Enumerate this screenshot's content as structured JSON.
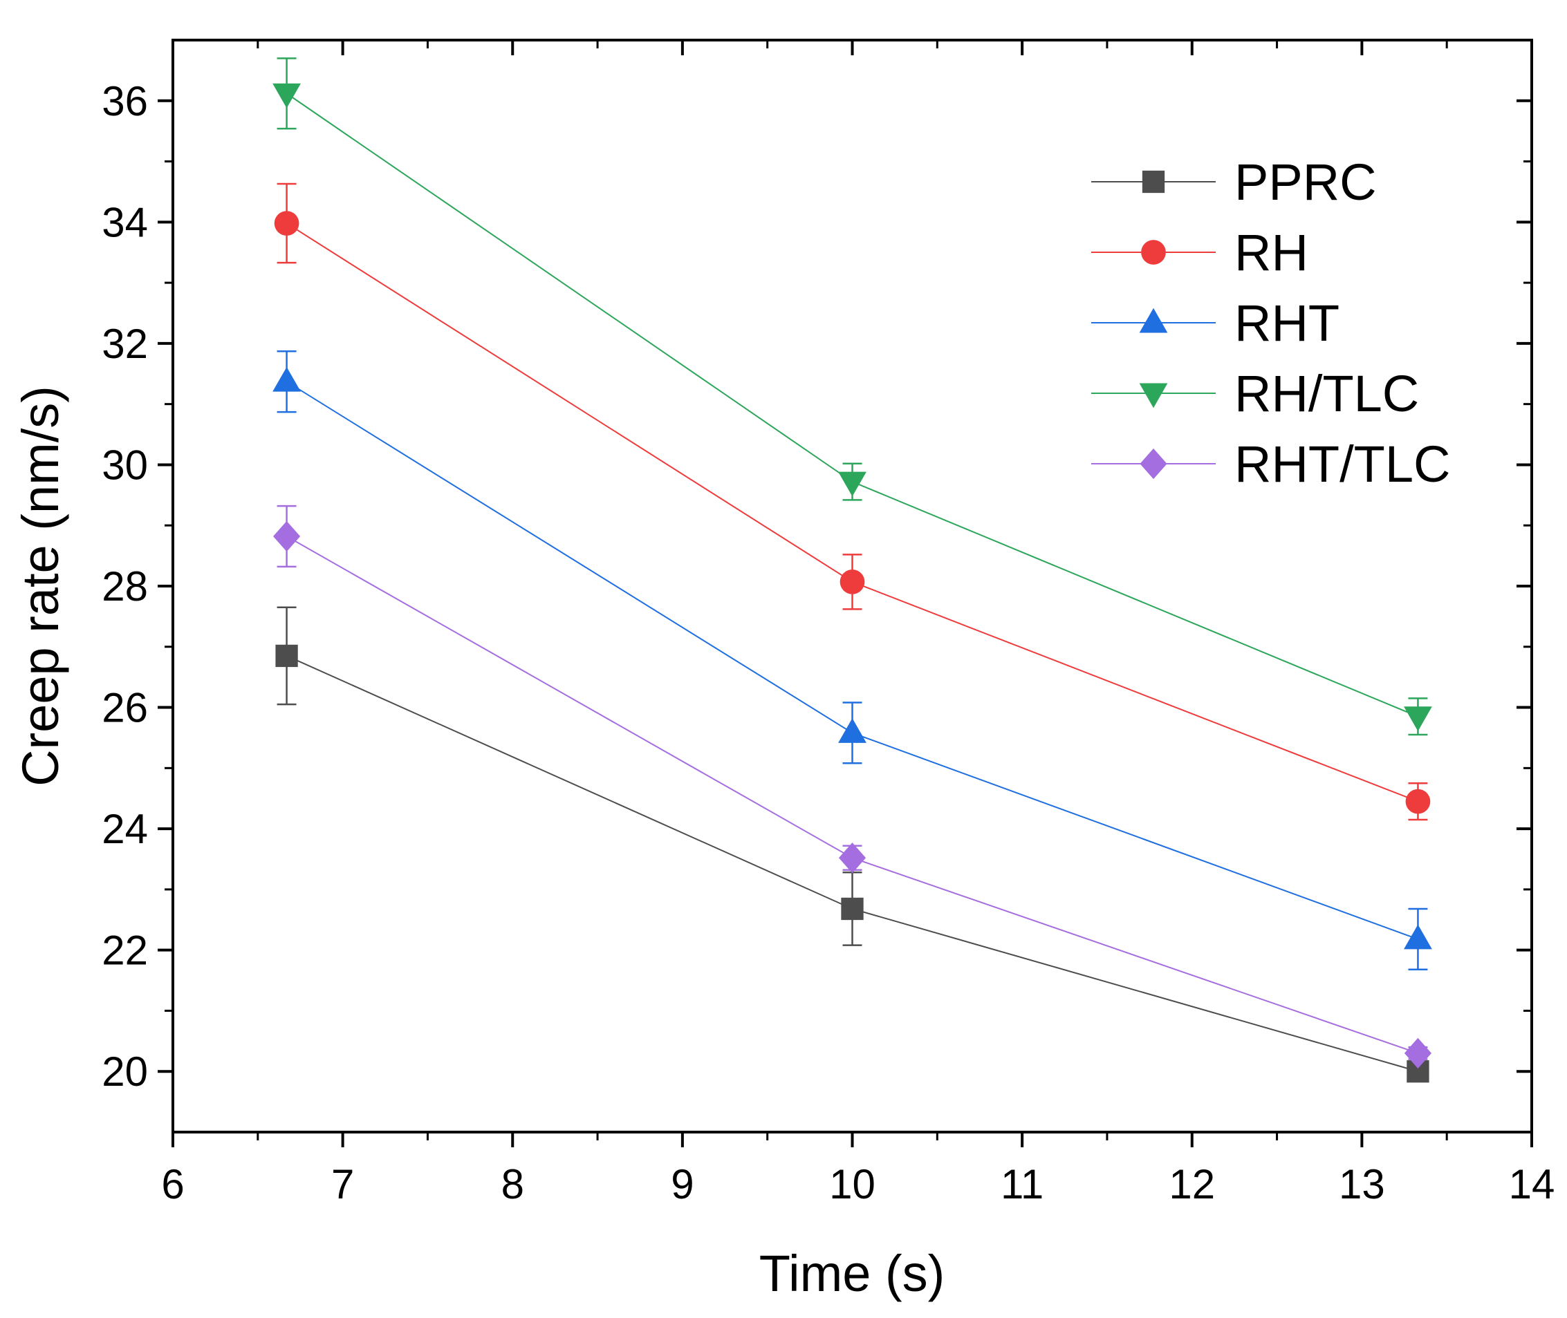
{
  "chart_data": {
    "type": "line",
    "title": "",
    "xlabel": "Time (s)",
    "ylabel": "Creep rate (nm/s)",
    "xlim": [
      6,
      14
    ],
    "ylim": [
      19,
      37
    ],
    "x_major_ticks": [
      6,
      7,
      8,
      9,
      10,
      11,
      12,
      13,
      14
    ],
    "x_tick_labels": [
      "6",
      "7",
      "8",
      "9",
      "10",
      "11",
      "12",
      "13",
      "14"
    ],
    "y_major_ticks": [
      20,
      22,
      24,
      26,
      28,
      30,
      32,
      34,
      36
    ],
    "y_tick_labels": [
      "20",
      "22",
      "24",
      "26",
      "28",
      "30",
      "32",
      "34",
      "36"
    ],
    "x_minor_step": 0.5,
    "y_minor_step": 1,
    "grid": false,
    "legend_position": "top-right",
    "x": [
      6.67,
      10,
      13.33
    ],
    "series": [
      {
        "name": "PPRC",
        "color": "#4d4d4d",
        "marker": "square",
        "values": [
          26.85,
          22.68,
          20.0
        ],
        "errors": [
          0.8,
          0.6,
          0.05
        ]
      },
      {
        "name": "RH",
        "color": "#ee3b3b",
        "marker": "circle",
        "values": [
          33.98,
          28.07,
          24.45
        ],
        "errors": [
          0.65,
          0.45,
          0.3
        ]
      },
      {
        "name": "RHT",
        "color": "#1f6fe0",
        "marker": "triangle-up",
        "values": [
          31.37,
          25.58,
          22.18
        ],
        "errors": [
          0.5,
          0.5,
          0.5
        ]
      },
      {
        "name": "RH/TLC",
        "color": "#2ca65a",
        "marker": "triangle-down",
        "values": [
          36.12,
          29.72,
          25.85
        ],
        "errors": [
          0.58,
          0.3,
          0.3
        ]
      },
      {
        "name": "RHT/TLC",
        "color": "#a56ee0",
        "marker": "diamond",
        "values": [
          28.82,
          23.52,
          20.3
        ],
        "errors": [
          0.5,
          0.2,
          0.1
        ]
      }
    ]
  }
}
